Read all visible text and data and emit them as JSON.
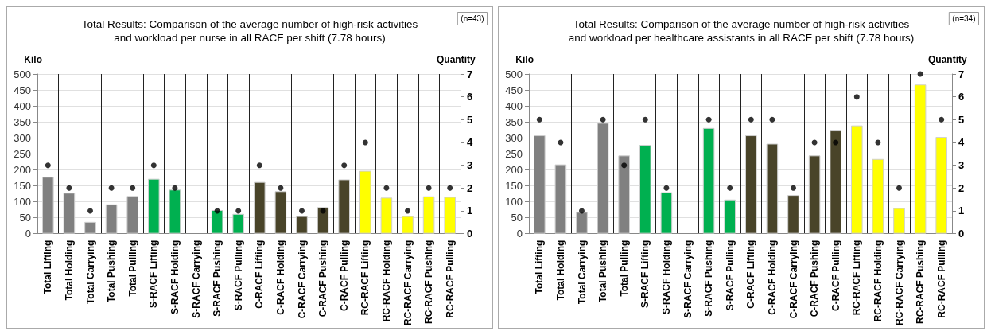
{
  "chart_data": [
    {
      "type": "bar",
      "title": "Total Results: Comparison of the average number of high-risk activities\nand workload per nurse in all RACF per shift (7.78 hours)",
      "ylabel": "Kilo",
      "y2label": "Quantity",
      "annotations": [
        "(n=43)"
      ],
      "categories": [
        "Total Lifting",
        "Total Holding",
        "Total Carrying",
        "Total Pushing",
        "Total Pulling",
        "S-RACF Lifting",
        "S-RACF Holding",
        "S-RACF Carrying",
        "S-RACF Pushing",
        "S-RACF Pulling",
        "C-RACF Lifting",
        "C-RACF Holding",
        "C-RACF Carrying",
        "C-RACF Pushing",
        "C-RACF Pulling",
        "RC-RACF Lifting",
        "RC-RACF Holding",
        "RC-RACF Carrying",
        "RC-RACF Pushing",
        "RC-RACF Pulling"
      ],
      "series": [
        {
          "values": [
            178,
            128,
            37,
            92,
            118,
            172,
            138,
            null,
            74,
            62,
            162,
            133,
            55,
            83,
            170,
            197,
            113,
            55,
            117,
            115
          ],
          "colors": [
            "#808080",
            "#808080",
            "#808080",
            "#808080",
            "#808080",
            "#00b050",
            "#00b050",
            null,
            "#00b050",
            "#00b050",
            "#494429",
            "#494429",
            "#494429",
            "#494429",
            "#494429",
            "#ffff00",
            "#ffff00",
            "#ffff00",
            "#ffff00",
            "#ffff00"
          ]
        },
        {
          "type": "scatter",
          "axis": "y2",
          "color": "#000000",
          "values": [
            3,
            2,
            1,
            2,
            2,
            3,
            2,
            null,
            1,
            1,
            3,
            2,
            1,
            1,
            3,
            4,
            2,
            1,
            2,
            2
          ]
        }
      ],
      "ylim": [
        0,
        500
      ],
      "yticks": [
        0,
        50,
        100,
        150,
        200,
        250,
        300,
        350,
        400,
        450,
        500
      ],
      "y2lim": [
        0,
        7
      ],
      "y2ticks": [
        0,
        1,
        2,
        3,
        4,
        5,
        6,
        7
      ],
      "grid": true,
      "marker": "circle"
    },
    {
      "type": "bar",
      "title": "Total Results: Comparison of the average number of high-risk activities\nand workload per healthcare assistants in all RACF per shift (7.78 hours)",
      "ylabel": "Kilo",
      "y2label": "Quantity",
      "annotations": [
        "(n=34)"
      ],
      "categories": [
        "Total Lifting",
        "Total Holding",
        "Total Carrying",
        "Total Pushing",
        "Total Pulling",
        "S-RACF Lifting",
        "S-RACF Holding",
        "S-RACF Carrying",
        "S-RACF Pushing",
        "S-RACF Pulling",
        "C-RACF Lifting",
        "C-RACF Holding",
        "C-RACF Carrying",
        "C-RACF Pushing",
        "C-RACF Pulling",
        "RC-RACF Lifting",
        "RC-RACF Holding",
        "RC-RACF Carrying",
        "RC-RACF Pushing",
        "RC-RACF Pulling"
      ],
      "series": [
        {
          "values": [
            308,
            217,
            68,
            347,
            245,
            278,
            130,
            null,
            331,
            107,
            308,
            282,
            121,
            245,
            323,
            339,
            234,
            80,
            467,
            303
          ],
          "colors": [
            "#808080",
            "#808080",
            "#808080",
            "#808080",
            "#808080",
            "#00b050",
            "#00b050",
            null,
            "#00b050",
            "#00b050",
            "#494429",
            "#494429",
            "#494429",
            "#494429",
            "#494429",
            "#ffff00",
            "#ffff00",
            "#ffff00",
            "#ffff00",
            "#ffff00"
          ]
        },
        {
          "type": "scatter",
          "axis": "y2",
          "color": "#000000",
          "values": [
            5,
            4,
            1,
            5,
            3,
            5,
            2,
            null,
            5,
            2,
            5,
            5,
            2,
            4,
            4,
            6,
            4,
            2,
            7,
            5
          ]
        }
      ],
      "ylim": [
        0,
        500
      ],
      "yticks": [
        0,
        50,
        100,
        150,
        200,
        250,
        300,
        350,
        400,
        450,
        500
      ],
      "y2lim": [
        0,
        7
      ],
      "y2ticks": [
        0,
        1,
        2,
        3,
        4,
        5,
        6,
        7
      ],
      "grid": true,
      "marker": "circle"
    }
  ]
}
